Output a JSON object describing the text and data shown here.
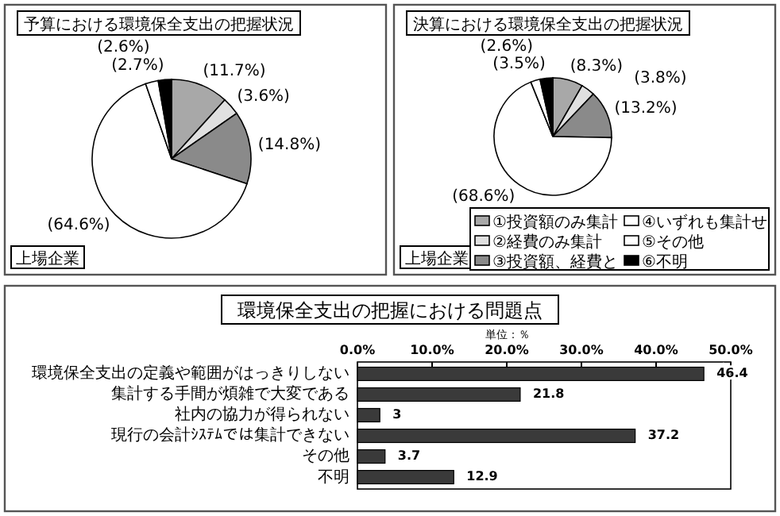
{
  "chart_data": [
    {
      "type": "pie",
      "title": "予算における環境保全支出の把握状況",
      "subtitle": "上場企業",
      "categories": [
        null,
        null,
        null,
        null,
        null,
        null
      ],
      "values": [
        11.7,
        3.6,
        14.8,
        64.6,
        2.6,
        2.7
      ],
      "colors": [
        "#a8a8a8",
        "#e0e0e0",
        "#8a8a8a",
        "#ffffff",
        "#ffffff",
        "#000000"
      ],
      "value_labels": [
        "(11.7%)",
        "(3.6%)",
        "(14.8%)",
        "(64.6%)",
        "(2.6%)",
        "(2.7%)"
      ],
      "legend": false
    },
    {
      "type": "pie",
      "title": "決算における環境保全支出の把握状況",
      "subtitle": "上場企業",
      "categories": [
        "①投資額のみ集計",
        "②経費のみ集計",
        "③投資額、経費と",
        "④いずれも集計せ",
        "⑤その他",
        "⑥不明"
      ],
      "values": [
        8.3,
        3.8,
        13.2,
        68.6,
        2.6,
        3.5
      ],
      "colors": [
        "#a8a8a8",
        "#e0e0e0",
        "#8a8a8a",
        "#ffffff",
        "#ffffff",
        "#000000"
      ],
      "value_labels": [
        "(8.3%)",
        "(3.8%)",
        "(13.2%)",
        "(68.6%)",
        "(2.6%)",
        "(3.5%)"
      ],
      "legend": "bottom right"
    },
    {
      "type": "bar",
      "orientation": "horizontal",
      "title": "環境保全支出の把握における問題点",
      "annotations": [
        "単位：％"
      ],
      "categories": [
        "環境保全支出の定義や範囲がはっきりしない",
        "集計する手間が煩雑で大変である",
        "社内の協力が得られない",
        "現行の会計ｼｽﾃﾑでは集計できない",
        "その他",
        "不明"
      ],
      "values": [
        46.4,
        21.8,
        3,
        37.2,
        3.7,
        12.9
      ],
      "color": "#3a3a3a",
      "data_labels": true,
      "xlim": [
        0,
        50
      ],
      "xticks": [
        {
          "value": 0,
          "label": "0.0%"
        },
        {
          "value": 10,
          "label": "10.0%"
        },
        {
          "value": 20,
          "label": "20.0%"
        },
        {
          "value": 30,
          "label": "30.0%"
        },
        {
          "value": 40,
          "label": "40.0%"
        },
        {
          "value": 50,
          "label": "50.0%"
        }
      ],
      "grid": false
    }
  ]
}
